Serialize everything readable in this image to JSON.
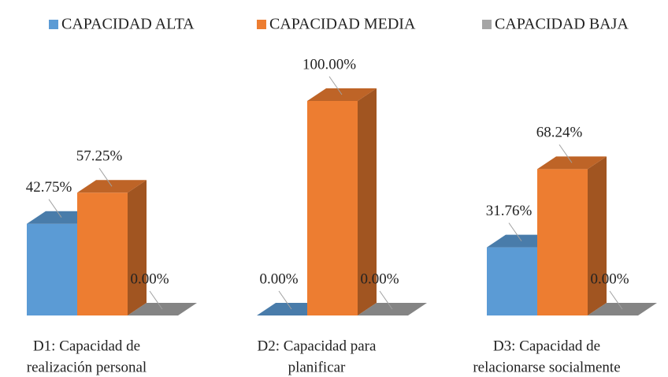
{
  "chart_data": {
    "type": "bar3d",
    "categories": [
      [
        "D1: Capacidad de",
        "realización personal"
      ],
      [
        "D2: Capacidad para",
        "planificar"
      ],
      [
        "D3: Capacidad de",
        "relacionarse socialmente"
      ]
    ],
    "series": [
      {
        "name": "CAPACIDAD ALTA",
        "color": "#5b9bd5",
        "values": [
          42.75,
          0,
          31.76
        ],
        "value_labels": [
          "42.75%",
          "0.00%",
          "31.76%"
        ]
      },
      {
        "name": "CAPACIDAD MEDIA",
        "color": "#ed7d31",
        "values": [
          57.25,
          100,
          68.24
        ],
        "value_labels": [
          "57.25%",
          "100.00%",
          "68.24%"
        ]
      },
      {
        "name": "CAPACIDAD BAJA",
        "color": "#a5a5a5",
        "values": [
          0,
          0,
          0
        ],
        "value_labels": [
          "0.00%",
          "0.00%",
          "0.00%"
        ]
      }
    ],
    "legend": "top"
  }
}
